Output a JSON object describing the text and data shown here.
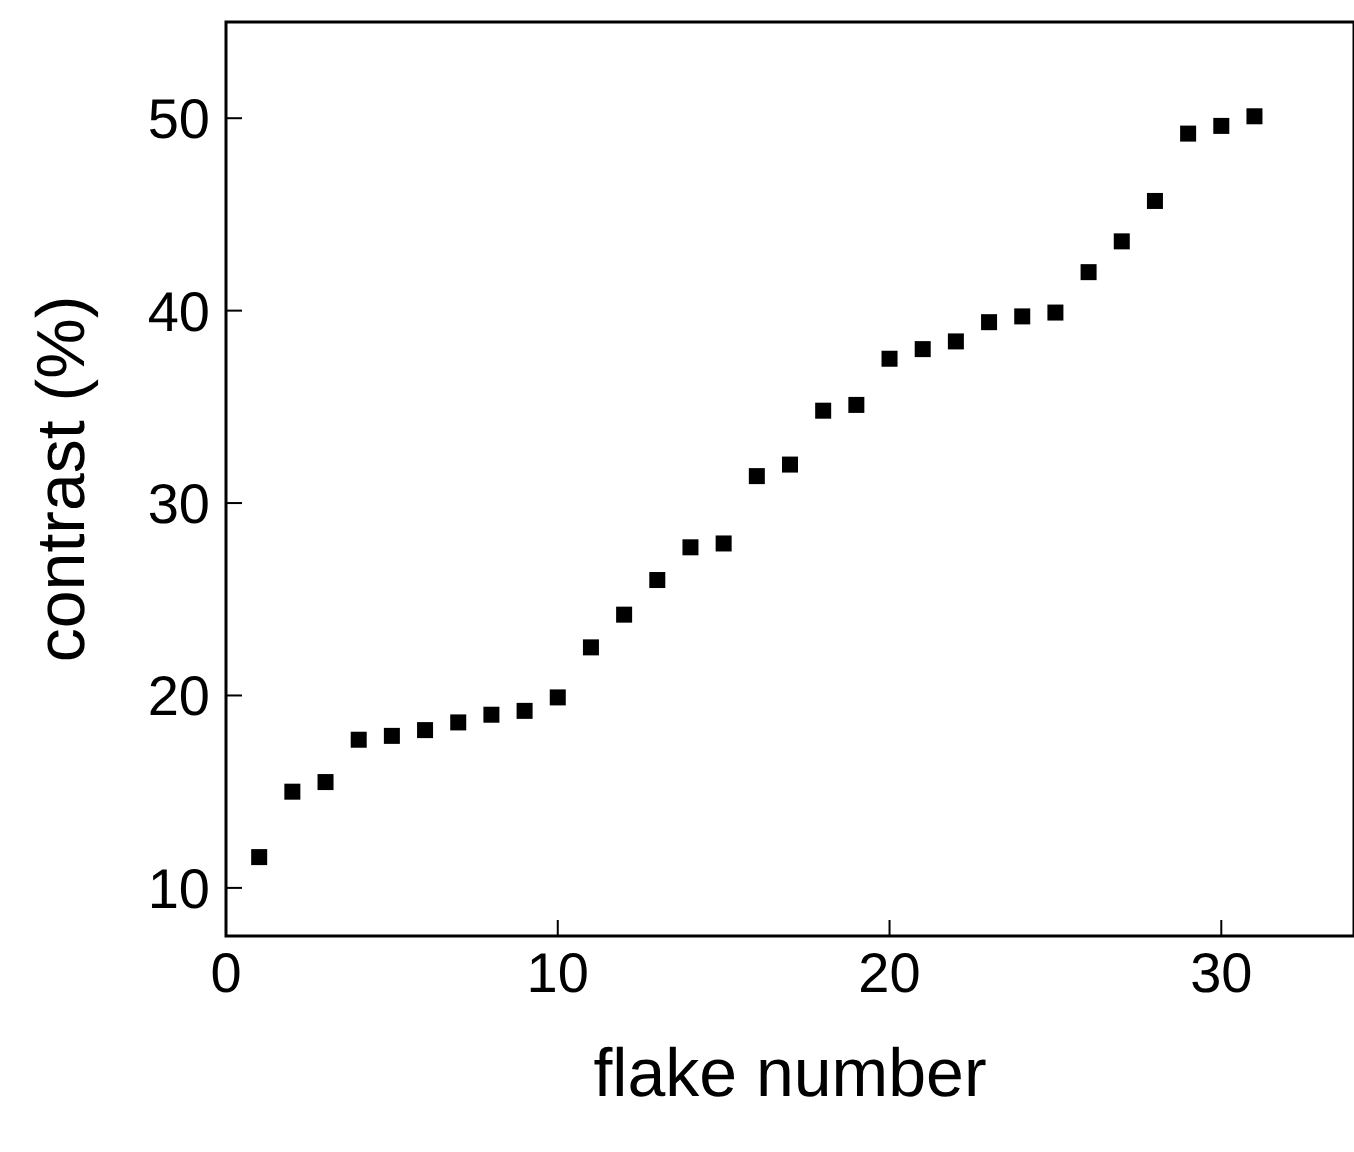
{
  "chart_data": {
    "type": "scatter",
    "xlabel": "flake number",
    "ylabel": "contrast (%)",
    "x": [
      1,
      2,
      3,
      4,
      5,
      6,
      7,
      8,
      9,
      10,
      11,
      12,
      13,
      14,
      15,
      16,
      17,
      18,
      19,
      20,
      21,
      22,
      23,
      24,
      25,
      26,
      27,
      28,
      29,
      30,
      31
    ],
    "values": [
      11.6,
      15.0,
      15.5,
      17.7,
      17.9,
      18.2,
      18.6,
      19.0,
      19.2,
      19.9,
      22.5,
      24.2,
      26.0,
      27.7,
      27.9,
      31.4,
      32.0,
      34.8,
      35.1,
      37.5,
      38.0,
      38.4,
      39.4,
      39.7,
      39.9,
      42.0,
      43.6,
      45.7,
      49.2,
      49.6,
      50.1
    ],
    "color": "#000000",
    "marker": "square",
    "xlim": [
      0,
      34
    ],
    "xticks": [
      0,
      10,
      20,
      30
    ],
    "ylim": [
      7.5,
      55
    ],
    "yticks": [
      10,
      20,
      30,
      40,
      50
    ],
    "grid": false,
    "legend": false
  }
}
